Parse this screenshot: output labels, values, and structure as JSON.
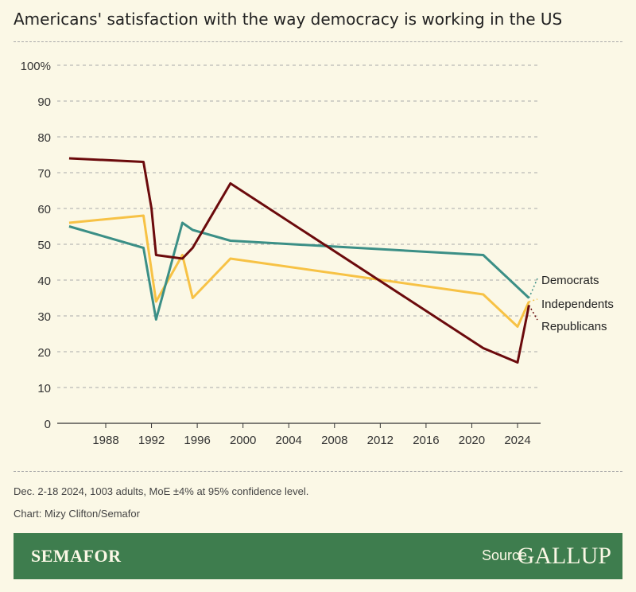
{
  "title": "Americans' satisfaction with the way democracy is working in the US",
  "chart_data": {
    "type": "line",
    "title": "Americans' satisfaction with the way democracy is working in the US",
    "ylim": [
      0,
      100
    ],
    "yticks": [
      0,
      10,
      20,
      30,
      40,
      50,
      60,
      70,
      80,
      90,
      100
    ],
    "ytick_labels": [
      "0",
      "10",
      "20",
      "30",
      "40",
      "50",
      "60",
      "70",
      "80",
      "90",
      "100%"
    ],
    "xticks": [
      1988,
      1992,
      1996,
      2000,
      2004,
      2008,
      2012,
      2016,
      2020,
      2024
    ],
    "xlim": [
      1983.5,
      2026
    ],
    "grid": "horizontal dashed",
    "legend": "direct labels at right",
    "series": [
      {
        "name": "Democrats",
        "color": "#3b8f86",
        "x": [
          1984.8,
          1991.3,
          1992.4,
          1994.7,
          1995.6,
          1998.9,
          2021,
          2025
        ],
        "values": [
          55,
          49,
          29,
          56,
          54,
          51,
          47,
          35
        ]
      },
      {
        "name": "Independents",
        "color": "#f7c245",
        "x": [
          1984.8,
          1991.3,
          1992.4,
          1994.7,
          1995.6,
          1998.9,
          2021,
          2024,
          2025
        ],
        "values": [
          56,
          58,
          34,
          47,
          35,
          46,
          36,
          27,
          34
        ]
      },
      {
        "name": "Republicans",
        "color": "#6b0a0c",
        "x": [
          1984.8,
          1991.3,
          1992,
          1992.4,
          1994.7,
          1995.6,
          1998.9,
          2021,
          2024,
          2025
        ],
        "values": [
          74,
          73,
          60,
          47,
          46,
          49,
          67,
          21,
          17,
          33
        ]
      }
    ]
  },
  "note": "Dec. 2-18 2024, 1003 adults, MoE ±4% at 95% confidence level.",
  "credit": "Chart: Mizy Clifton/Semafor",
  "footer": {
    "brand": "SEMAFOR",
    "source_label": "Source",
    "source": "GALLUP"
  }
}
